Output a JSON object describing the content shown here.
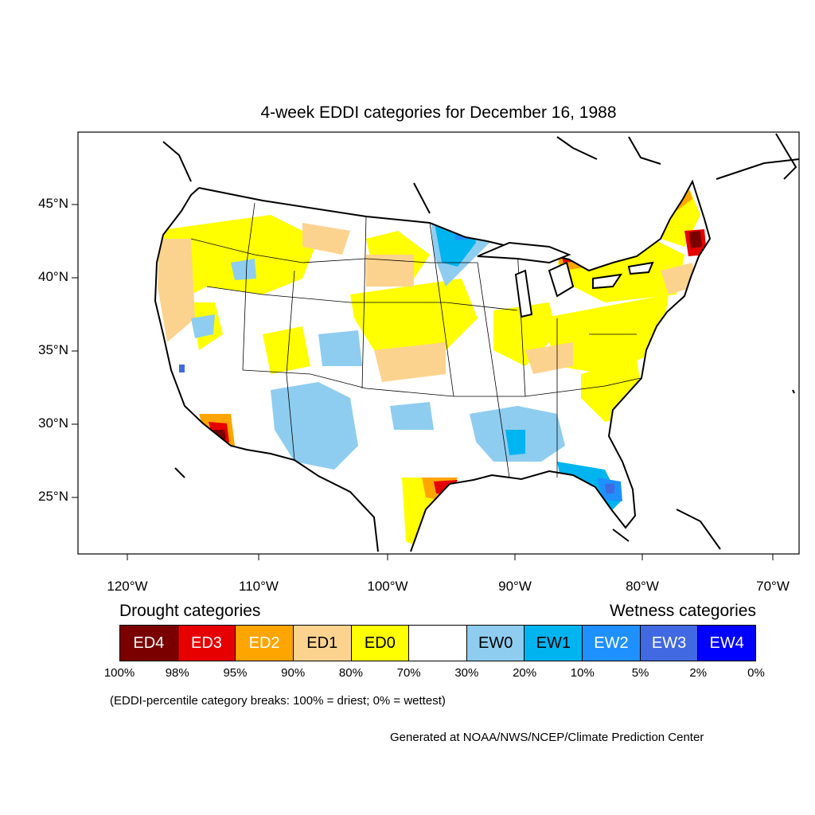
{
  "title": "4-week EDDI categories for December 16, 1988",
  "lat_labels": [
    "45°N",
    "40°N",
    "35°N",
    "30°N",
    "25°N"
  ],
  "lon_labels": [
    "120°W",
    "110°W",
    "100°W",
    "90°W",
    "80°W",
    "70°W"
  ],
  "legend": {
    "drought_heading": "Drought categories",
    "wetness_heading": "Wetness categories",
    "categories": [
      {
        "label": "ED4",
        "color": "#7a0000",
        "text_color": "#ffffff"
      },
      {
        "label": "ED3",
        "color": "#e60000",
        "text_color": "#ffffff"
      },
      {
        "label": "ED2",
        "color": "#ffa500",
        "text_color": "#ffffff"
      },
      {
        "label": "ED1",
        "color": "#fcd38e",
        "text_color": "#000000"
      },
      {
        "label": "ED0",
        "color": "#ffff00",
        "text_color": "#000000"
      },
      {
        "label": "",
        "color": "#ffffff",
        "text_color": "#000000"
      },
      {
        "label": "EW0",
        "color": "#8ecdef",
        "text_color": "#000000"
      },
      {
        "label": "EW1",
        "color": "#00b4f0",
        "text_color": "#000000"
      },
      {
        "label": "EW2",
        "color": "#1e90ff",
        "text_color": "#ffffff"
      },
      {
        "label": "EW3",
        "color": "#4169e1",
        "text_color": "#ffffff"
      },
      {
        "label": "EW4",
        "color": "#0000ff",
        "text_color": "#ffffff"
      }
    ],
    "percent_breaks": [
      "100%",
      "98%",
      "95%",
      "90%",
      "80%",
      "70%",
      "30%",
      "20%",
      "10%",
      "5%",
      "2%",
      "0%"
    ]
  },
  "note": "(EDDI-percentile category breaks: 100% = driest; 0% = wettest)",
  "credit": "Generated at NOAA/NWS/NCEP/Climate Prediction Center"
}
